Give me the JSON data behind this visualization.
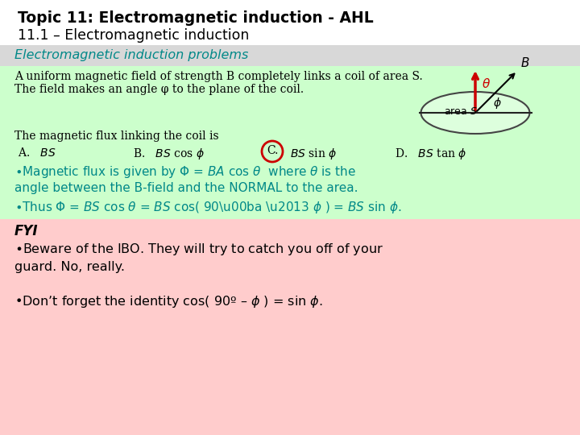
{
  "title_bold": "Topic 11: Electromagnetic induction - AHL",
  "title_normal": "11.1 – Electromagnetic induction",
  "subtitle": "Electromagnetic induction problems",
  "problem_text_line1": "A uniform magnetic field of strength B completely links a coil of area S.",
  "problem_text_line2": "The field makes an angle φ to the plane of the coil.",
  "question_text": "The magnetic flux linking the coil is",
  "fyi_label": "FYI",
  "bg_white": "#ffffff",
  "bg_light_gray": "#d8d8d8",
  "bg_light_green": "#ccffcc",
  "bg_pink": "#ffcccc",
  "color_teal": "#008888",
  "color_black": "#000000",
  "color_red": "#cc0000"
}
